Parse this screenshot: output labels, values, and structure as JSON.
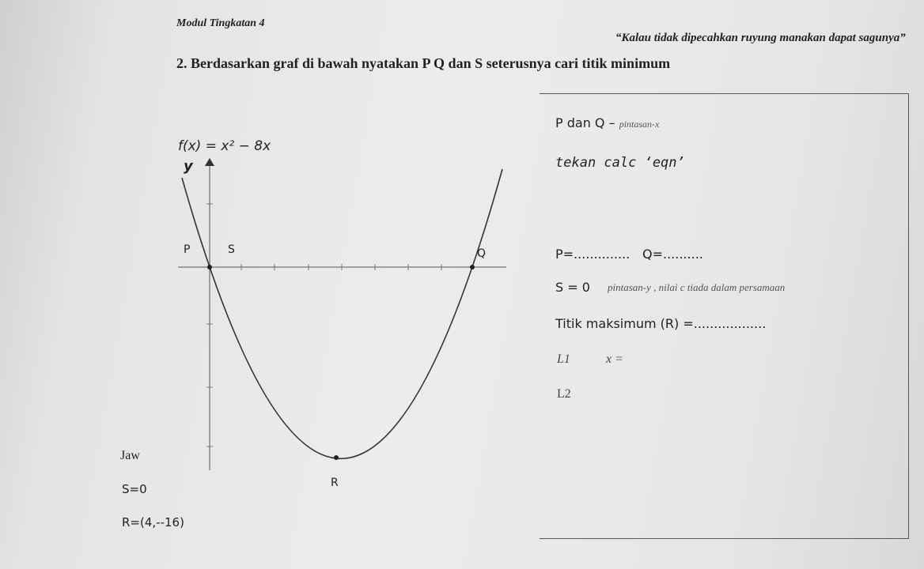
{
  "header": {
    "module": "Modul Tingkatan 4",
    "quote": "“Kalau tidak dipecahkan ruyung manakan dapat sagunya”"
  },
  "question": {
    "text": "2. Berdasarkan graf di bawah nyatakan P Q dan S seterusnya cari titik minimum"
  },
  "graph": {
    "function": "f(x) = x² − 8x",
    "y_label": "y",
    "points": [
      "P",
      "S",
      "Q",
      "R"
    ]
  },
  "box": {
    "pq_label": "P dan Q –",
    "pq_note": "pintasan-x",
    "calc_note": "tekan calc ‘eqn’",
    "p_blank": "P=..............",
    "q_blank": "Q=..........",
    "s_value": "S = 0",
    "s_note": "pintasan-y ,  nilai c tiada dalam persamaan",
    "max_blank": "Titik maksimum (R) =..................",
    "l1": "L1",
    "x_eq": "x =",
    "l2": "L2"
  },
  "answers": {
    "heading": "Jaw",
    "s": "S=0",
    "r": "R=(4,--16)"
  }
}
